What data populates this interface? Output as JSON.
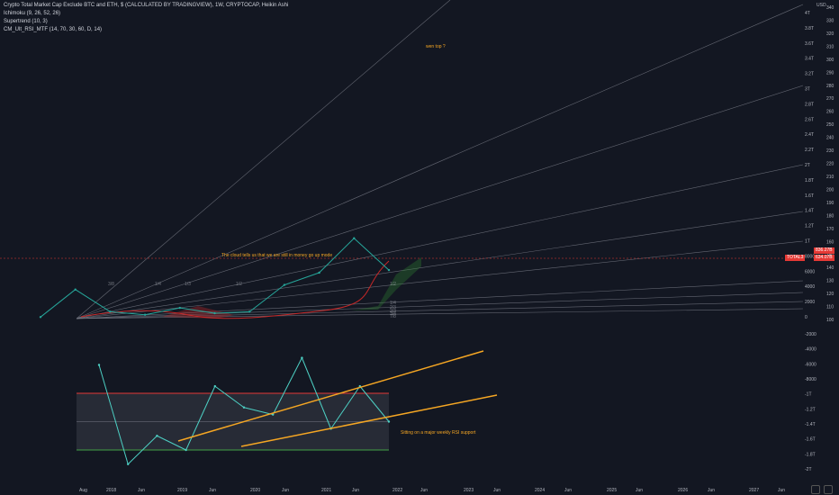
{
  "legend": {
    "title": "Crypto Total Market Cap Exclude BTC and ETH, $ (CALCULATED BY TRADINGVIEW), 1W, CRYPTOCAP, Heikin Ashi",
    "indicators": [
      "Ichimoku (9, 26, 52, 26)",
      "Supertrend (10, 3)",
      "CM_Ult_RSI_MTF (14, 70, 30, 60, D, 14)"
    ]
  },
  "annotations": {
    "wen_top": "wen top ?",
    "cloud": "The cloud tells us that we are still in money go up mode",
    "rsi_support": "Sitting on a major weekly RSI support"
  },
  "price_axis": {
    "currency": "USD",
    "ticks": [
      "4T",
      "3.8T",
      "3.6T",
      "3.4T",
      "3.2T",
      "3T",
      "2.8T",
      "2.6T",
      "2.4T",
      "2.2T",
      "2T",
      "1.8T",
      "1.6T",
      "1.4T",
      "1.2T",
      "1T",
      "8000",
      "6000",
      "4000",
      "2000",
      "0"
    ]
  },
  "fib_fan_labels": [
    "3/8",
    "1/4",
    "1/3",
    "1/2",
    "1/2",
    "1/4",
    "2/3",
    "2/3",
    "3/4",
    "7/8"
  ],
  "fan_scale_labels": [
    "340",
    "330",
    "320",
    "310",
    "300",
    "290",
    "280",
    "270",
    "260",
    "250",
    "240",
    "230",
    "220",
    "210",
    "200",
    "190",
    "180",
    "170",
    "160",
    "150",
    "140",
    "130",
    "120",
    "110",
    "100"
  ],
  "rsi_axis": {
    "ticks": [
      "-2000",
      "-4000",
      "-6000",
      "-8000",
      "-1T",
      "-1.2T",
      "-1.4T",
      "-1.6T",
      "-1.8T",
      "-2T"
    ]
  },
  "badges": {
    "price_label": "TOTAL3",
    "price_value": "634.07B",
    "target_value": "836.27B"
  },
  "time_axis": {
    "labels": [
      "Aug",
      "2018",
      "Jun",
      "2019",
      "Jun",
      "2020",
      "Jun",
      "2021",
      "Jun",
      "2022",
      "Jun",
      "2023",
      "Jun",
      "2024",
      "Jun",
      "2025",
      "Jun",
      "2026",
      "Jun",
      "2027",
      "Jun"
    ]
  },
  "colors": {
    "background": "#131722",
    "price_line": "#26a69a",
    "rsi_line": "#4dd0c4",
    "overbought": "#e53935",
    "oversold": "#43a047",
    "trendline": "#f5a623",
    "cloud_green": "#2e7d32",
    "cloud_red": "#c62828",
    "fan_line": "#787b86"
  },
  "chart_data": {
    "type": "line",
    "x": [
      "Aug 2017",
      "2018",
      "Jun 2018",
      "2019",
      "Jun 2019",
      "2020",
      "Jun 2020",
      "2021",
      "Jun 2021",
      "Nov 2021",
      "Dec 2021"
    ],
    "series": [
      {
        "values": [
          20,
          380,
          90,
          50,
          140,
          70,
          90,
          440,
          600,
          1050,
          634
        ]
      },
      {
        "values": [
          90,
          20,
          40,
          30,
          75,
          60,
          55,
          95,
          45,
          75,
          50
        ]
      }
    ],
    "rsi_levels": {
      "overbought": 70,
      "middle": 50,
      "oversold": 30
    }
  }
}
